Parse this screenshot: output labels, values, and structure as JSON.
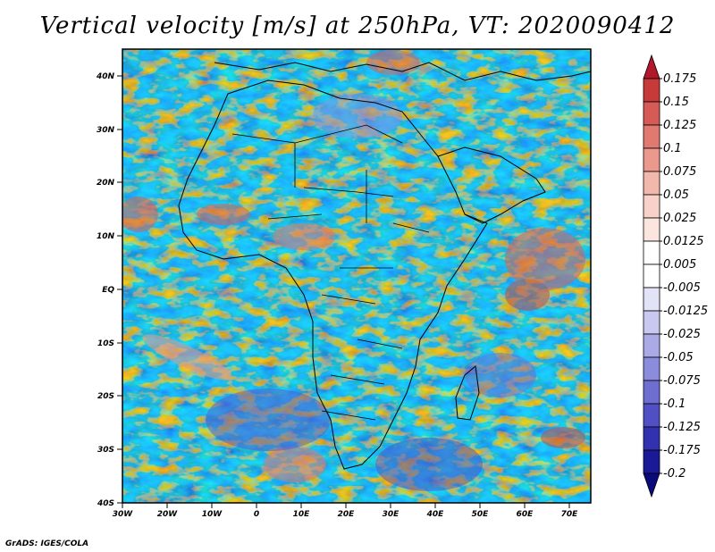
{
  "title": "Vertical velocity [m/s] at 250hPa, VT: 2020090412",
  "credit": "GrADS: IGES/COLA",
  "map": {
    "lat_labels": [
      "40N",
      "30N",
      "20N",
      "10N",
      "EQ",
      "10S",
      "20S",
      "30S",
      "40S"
    ],
    "lon_labels": [
      "30W",
      "20W",
      "10W",
      "0",
      "10E",
      "20E",
      "30E",
      "40E",
      "50E",
      "60E",
      "70E"
    ],
    "lon_range": [
      -30,
      75
    ],
    "lat_range": [
      -40,
      45
    ],
    "field": "Vertical velocity",
    "level": "250hPa",
    "valid_time": "2020090412"
  },
  "colorbar": {
    "labels": [
      "0.175",
      "0.15",
      "0.125",
      "0.1",
      "0.075",
      "0.05",
      "0.025",
      "0.0125",
      "0.005",
      "-0.005",
      "-0.0125",
      "-0.025",
      "-0.05",
      "-0.075",
      "-0.1",
      "-0.125",
      "-0.175",
      "-0.2"
    ],
    "colors": [
      "#b2182b",
      "#c73a3a",
      "#d65a55",
      "#e07a70",
      "#ea998c",
      "#f2b8ab",
      "#f8d2c8",
      "#fbe6df",
      "#ffffff",
      "#ffffff",
      "#e3e3f8",
      "#c8c8f0",
      "#aaaae6",
      "#8c8cdc",
      "#6e6ed0",
      "#5050c4",
      "#3232b0",
      "#1a1a96",
      "#0a0a7a"
    ]
  }
}
